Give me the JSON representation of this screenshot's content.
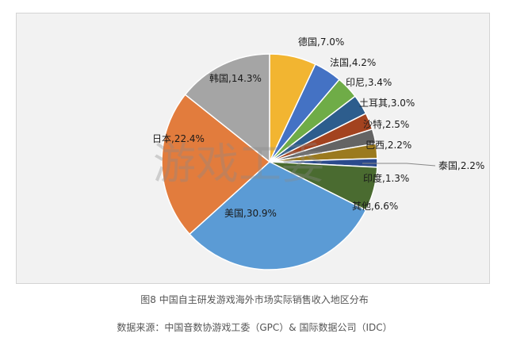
{
  "caption": "图8 中国自主研发游戏海外市场实际销售收入地区分布",
  "source": "数据来源：中国音数协游戏工委（GPC）& 国际数据公司（IDC）",
  "watermark": "游戏工委",
  "chart_data": {
    "type": "pie",
    "title": "",
    "start_angle_deg": 0,
    "direction": "clockwise",
    "slices": [
      {
        "label": "德国,7.0%",
        "name": "德国",
        "value": 7.0,
        "color": "#f2b531"
      },
      {
        "label": "法国,4.2%",
        "name": "法国",
        "value": 4.2,
        "color": "#4472c4"
      },
      {
        "label": "印尼,3.4%",
        "name": "印尼",
        "value": 3.4,
        "color": "#6fac47"
      },
      {
        "label": "土耳其,3.0%",
        "name": "土耳其",
        "value": 3.0,
        "color": "#2d5d8d"
      },
      {
        "label": "沙特,2.5%",
        "name": "沙特",
        "value": 2.5,
        "color": "#a3431f"
      },
      {
        "label": "巴西,2.2%",
        "name": "巴西",
        "value": 2.2,
        "color": "#646464"
      },
      {
        "label": "泰国,2.2%",
        "name": "泰国",
        "value": 2.2,
        "color": "#9b7a1e"
      },
      {
        "label": "印度,1.3%",
        "name": "印度",
        "value": 1.3,
        "color": "#2b4a8c"
      },
      {
        "label": "其他,6.6%",
        "name": "其他",
        "value": 6.6,
        "color": "#4a6b30"
      },
      {
        "label": "美国,30.9%",
        "name": "美国",
        "value": 30.9,
        "color": "#5b9bd5"
      },
      {
        "label": "日本,22.4%",
        "name": "日本",
        "value": 22.4,
        "color": "#e27c3d"
      },
      {
        "label": "韩国,14.3%",
        "name": "韩国",
        "value": 14.3,
        "color": "#a5a5a5"
      }
    ]
  }
}
